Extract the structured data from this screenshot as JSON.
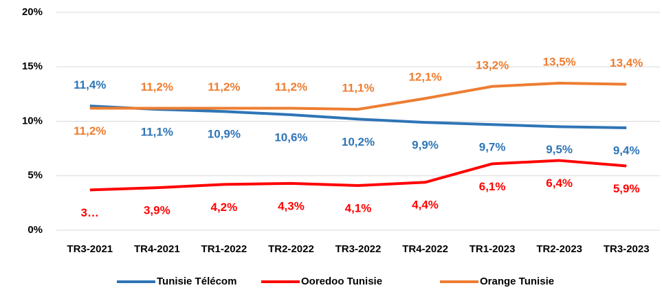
{
  "chart_data": {
    "type": "line",
    "categories": [
      "TR3-2021",
      "TR4-2021",
      "TR1-2022",
      "TR2-2022",
      "TR3-2022",
      "TR4-2022",
      "TR1-2023",
      "TR2-2023",
      "TR3-2023"
    ],
    "series": [
      {
        "name": "Tunisie Télécom",
        "color": "#2e75b6",
        "values": [
          11.4,
          11.1,
          10.9,
          10.6,
          10.2,
          9.9,
          9.7,
          9.5,
          9.4
        ],
        "value_labels": [
          "11,4%",
          "11,1%",
          "10,9%",
          "10,6%",
          "10,2%",
          "9,9%",
          "9,7%",
          "9,5%",
          "9,4%"
        ]
      },
      {
        "name": "Ooredoo Tunisie",
        "color": "#ff0000",
        "values": [
          3.7,
          3.9,
          4.2,
          4.3,
          4.1,
          4.4,
          6.1,
          6.4,
          5.9
        ],
        "value_labels": [
          "3…",
          "3,9%",
          "4,2%",
          "4,3%",
          "4,1%",
          "4,4%",
          "6,1%",
          "6,4%",
          "5,9%"
        ]
      },
      {
        "name": "Orange Tunisie",
        "color": "#ed7d31",
        "values": [
          11.2,
          11.2,
          11.2,
          11.2,
          11.1,
          12.1,
          13.2,
          13.5,
          13.4
        ],
        "value_labels": [
          "11,2%",
          "11,2%",
          "11,2%",
          "11,2%",
          "11,1%",
          "12,1%",
          "13,2%",
          "13,5%",
          "13,4%"
        ]
      }
    ],
    "ylim": [
      0,
      20
    ],
    "yticks": [
      {
        "value": 0,
        "label": "0%"
      },
      {
        "value": 5,
        "label": "5%"
      },
      {
        "value": 10,
        "label": "10%"
      },
      {
        "value": 15,
        "label": "15%"
      },
      {
        "value": 20,
        "label": "20%"
      }
    ],
    "grid": true,
    "legend": "bottom"
  }
}
